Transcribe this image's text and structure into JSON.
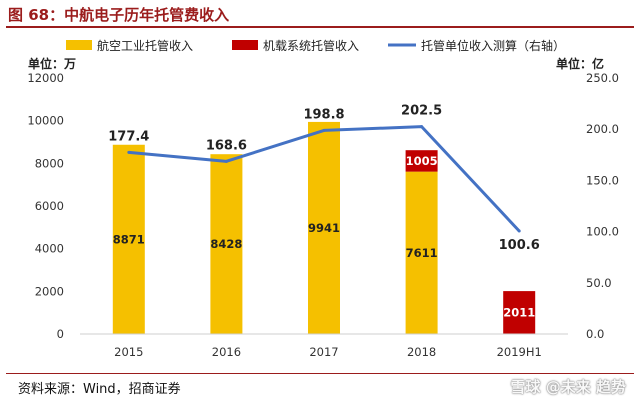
{
  "title": "图 68：中航电子历年托管费收入",
  "source": "资料来源：Wind，招商证券",
  "watermark": "雪球 @未来 趋势",
  "chart_data": {
    "type": "bar",
    "categories": [
      "2015",
      "2016",
      "2017",
      "2018",
      "2019H1"
    ],
    "series": [
      {
        "name": "航空工业托管收入",
        "kind": "bar",
        "axis": "left",
        "color": "#f5c000",
        "values": [
          8871,
          8428,
          9941,
          7611,
          null
        ],
        "labels": [
          "8871",
          "8428",
          "9941",
          "7611",
          ""
        ]
      },
      {
        "name": "机载系统托管收入",
        "kind": "bar",
        "axis": "left",
        "color": "#c00000",
        "values": [
          null,
          null,
          null,
          1005,
          2011
        ],
        "labels": [
          "",
          "",
          "",
          "1005",
          "2011"
        ]
      },
      {
        "name": "托管单位收入测算（右轴）",
        "kind": "line",
        "axis": "right",
        "color": "#4472c4",
        "values": [
          177.4,
          168.6,
          198.8,
          202.5,
          100.6
        ],
        "labels": [
          "177.4",
          "168.6",
          "198.8",
          "202.5",
          "100.6"
        ]
      }
    ],
    "left_axis": {
      "unit_label": "单位：万",
      "range": [
        0,
        12000
      ],
      "ticks": [
        "0",
        "2000",
        "4000",
        "6000",
        "8000",
        "10000",
        "12000"
      ]
    },
    "right_axis": {
      "unit_label": "单位：亿",
      "range": [
        0,
        250
      ],
      "ticks": [
        "0.0",
        "50.0",
        "100.0",
        "150.0",
        "200.0",
        "250.0"
      ]
    },
    "stacked": true,
    "grid": false,
    "legend_position": "top"
  }
}
